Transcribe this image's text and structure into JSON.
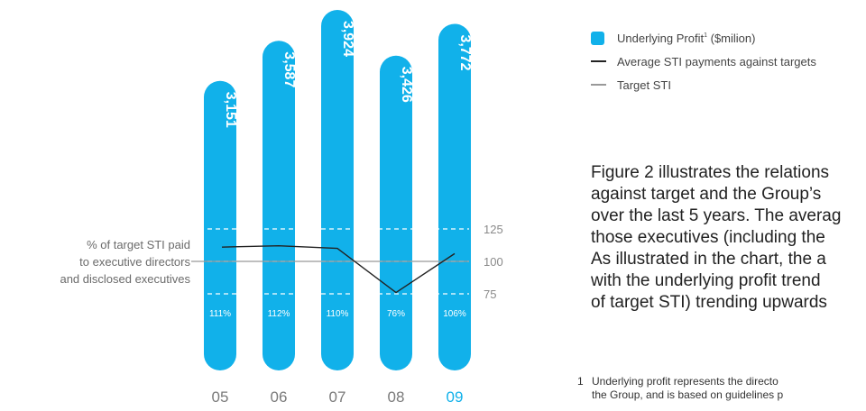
{
  "chart_data": {
    "type": "bar",
    "categories": [
      "05",
      "06",
      "07",
      "08",
      "09"
    ],
    "highlight_category": "09",
    "series": [
      {
        "name": "Underlying Profit¹ ($milion)",
        "values": [
          3151,
          3587,
          3924,
          3426,
          3772
        ],
        "labels": [
          "3,151",
          "3,587",
          "3,924",
          "3,426",
          "3,772"
        ],
        "color": "#11b1ea"
      },
      {
        "name": "Average STI payments against targets",
        "values": [
          111,
          112,
          110,
          76,
          106
        ],
        "labels": [
          "111%",
          "112%",
          "110%",
          "76%",
          "106%"
        ],
        "color": "#222222"
      },
      {
        "name": "Target STI",
        "values": [
          100,
          100,
          100,
          100,
          100
        ],
        "color": "#999999"
      }
    ],
    "ylim": [
      0,
      4000
    ],
    "y2_ticks": [
      125,
      100,
      75
    ],
    "y2lim": [
      75,
      125
    ],
    "y2label": "% of target STI paid\nto executive directors\nand disclosed executives",
    "legend_position": "top-right"
  },
  "legend": {
    "profit_text": "Underlying Profit",
    "profit_sup": "1",
    "profit_unit": " ($milion)",
    "average_label": "Average STI payments against targets",
    "target_label": "Target STI"
  },
  "body": {
    "lines": [
      "Figure 2 illustrates the relations",
      "against target and the Group’s",
      "over the last 5 years. The averag",
      "those executives (including the",
      "As illustrated in the chart, the a",
      "with the underlying profit trend",
      "of target STI) trending upwards"
    ]
  },
  "footnote": {
    "number": "1",
    "line1": "Underlying profit represents the directo",
    "line2": "the Group, and is based on guidelines p"
  },
  "colors": {
    "bar": "#11b1ea",
    "highlight_label": "#11b1ea",
    "category_label": "#7a7a7a",
    "axis_text": "#8a8a8a"
  }
}
